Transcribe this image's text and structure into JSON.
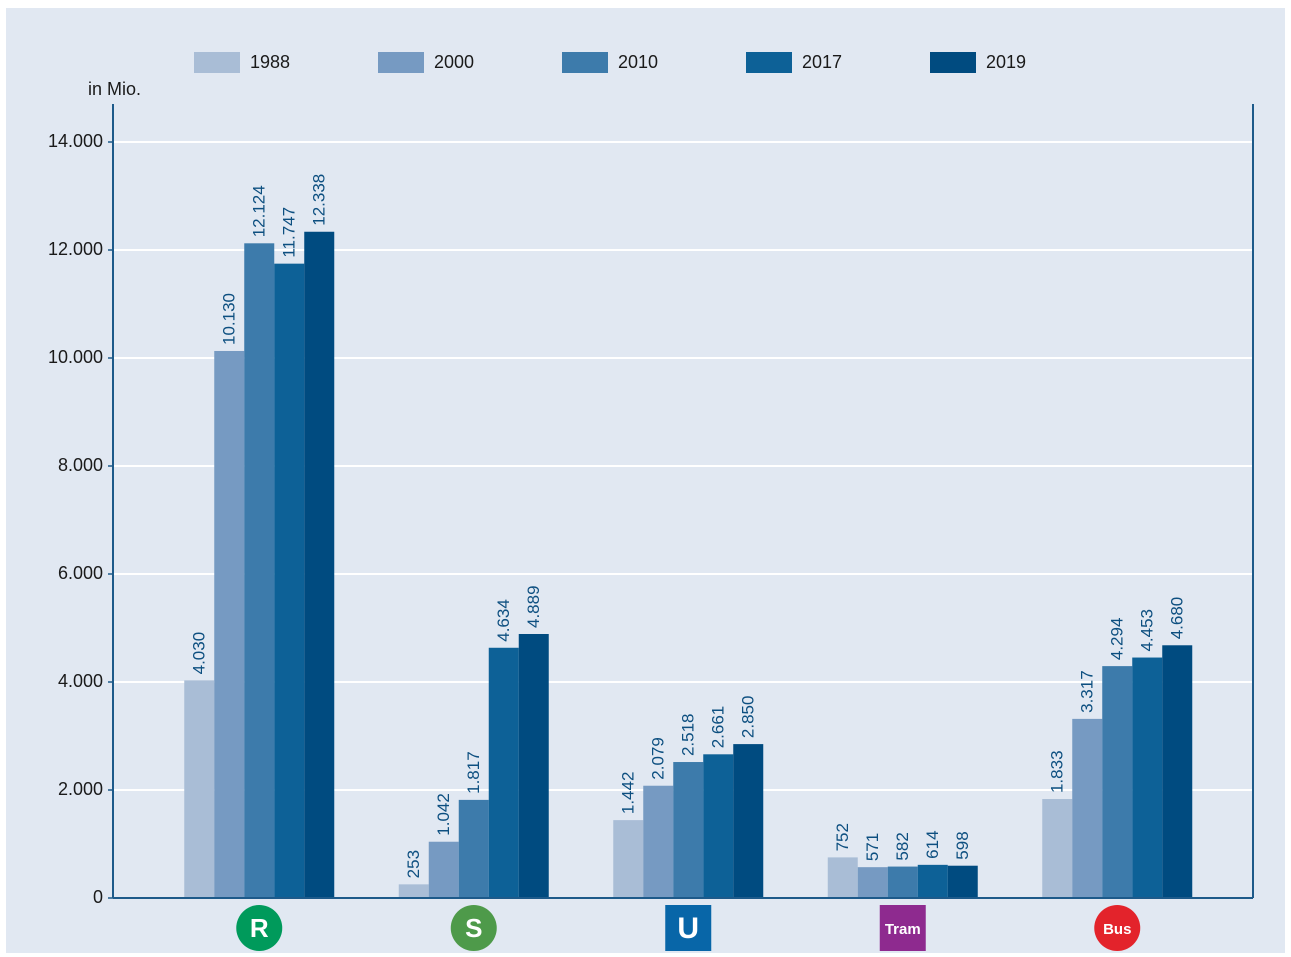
{
  "chart_data": {
    "type": "bar",
    "y_axis_label": "in Mio.",
    "categories": [
      "R",
      "S",
      "U",
      "Tram",
      "Bus"
    ],
    "series": [
      {
        "name": "1988",
        "color": "#a9bdd6",
        "values": [
          4030,
          253,
          1442,
          752,
          1833
        ],
        "value_labels": [
          "4.030",
          "253",
          "1.442",
          "752",
          "1.833"
        ]
      },
      {
        "name": "2000",
        "color": "#769ac2",
        "values": [
          10130,
          1042,
          2079,
          571,
          3317
        ],
        "value_labels": [
          "10.130",
          "1.042",
          "2.079",
          "571",
          "3.317"
        ]
      },
      {
        "name": "2010",
        "color": "#3d7bab",
        "values": [
          12124,
          1817,
          2518,
          582,
          4294
        ],
        "value_labels": [
          "12.124",
          "1.817",
          "2.518",
          "582",
          "4.294"
        ]
      },
      {
        "name": "2017",
        "color": "#0d6197",
        "values": [
          11747,
          4634,
          2661,
          614,
          4453
        ],
        "value_labels": [
          "11.747",
          "4.634",
          "2.661",
          "614",
          "4.453"
        ]
      },
      {
        "name": "2019",
        "color": "#004b80",
        "values": [
          12338,
          4889,
          2850,
          598,
          4680
        ],
        "value_labels": [
          "12.338",
          "4.889",
          "2.850",
          "598",
          "4.680"
        ]
      }
    ],
    "ylim": [
      0,
      14000
    ],
    "yticks": [
      0,
      {
        "value": 2000,
        "label": "2.000"
      },
      {
        "value": 4000,
        "label": "4.000"
      },
      {
        "value": 6000,
        "label": "6.000"
      },
      {
        "value": 8000,
        "label": "8.000"
      },
      {
        "value": 10000,
        "label": "10.000"
      },
      {
        "value": 12000,
        "label": "12.000"
      },
      {
        "value": 14000,
        "label": "14.000"
      }
    ],
    "grid": true
  }
}
